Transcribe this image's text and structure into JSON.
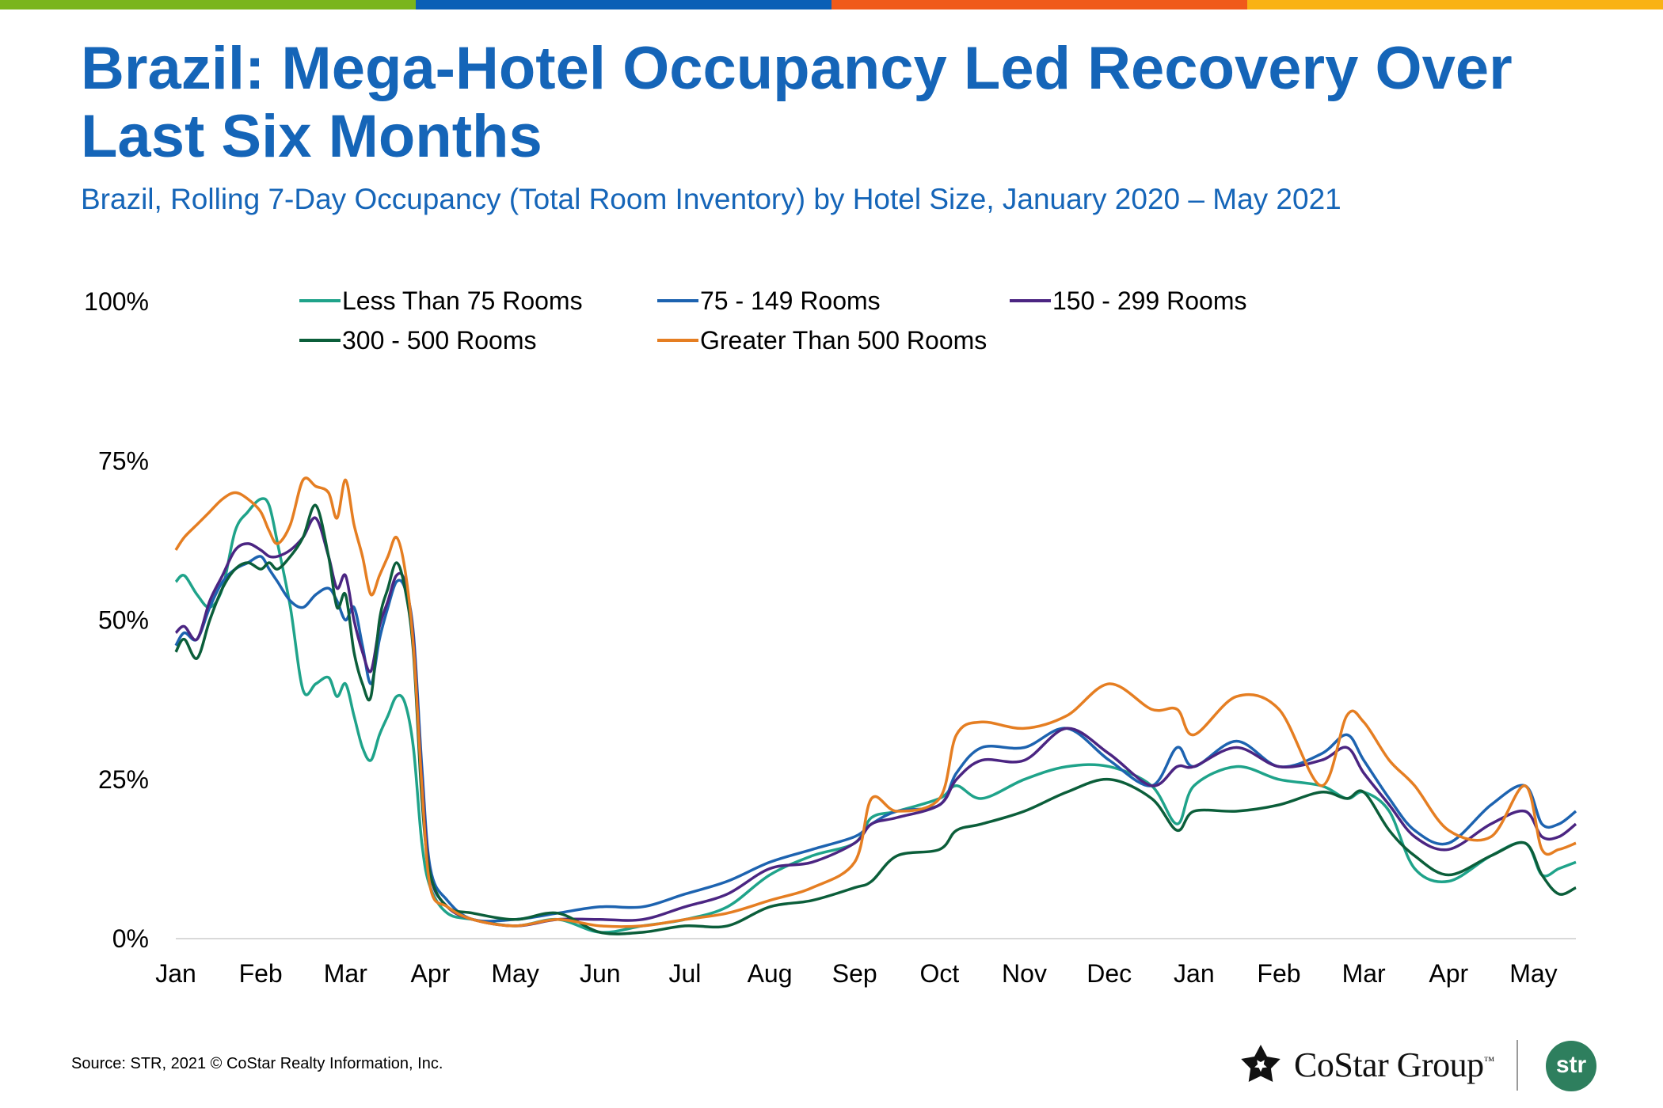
{
  "header": {
    "title": "Brazil: Mega-Hotel Occupancy Led Recovery Over Last Six Months",
    "subtitle": "Brazil, Rolling 7-Day Occupancy (Total Room Inventory) by Hotel Size, January 2020 – May 2021"
  },
  "colors": {
    "bar": [
      "#7ab51d",
      "#0b5fb6",
      "#f05a1a",
      "#f9b214"
    ],
    "title": "#1565b8"
  },
  "footer": {
    "source": "Source: STR, 2021 © CoStar Realty Information, Inc.",
    "logo_text": "CoStar Group",
    "logo_tm": "™",
    "badge_text": "str"
  },
  "chart_data": {
    "type": "line",
    "title": "Brazil, Rolling 7-Day Occupancy (Total Room Inventory) by Hotel Size, January 2020 – May 2021",
    "xlabel": "",
    "ylabel": "",
    "ylim": [
      0,
      100
    ],
    "xlim": [
      0,
      16.5
    ],
    "grid": false,
    "legend_position": "top",
    "y_ticks": [
      0,
      25,
      50,
      75,
      100
    ],
    "y_tick_labels": [
      "0%",
      "25%",
      "50%",
      "75%",
      "100%"
    ],
    "x_ticks": [
      0,
      1,
      2,
      3,
      4,
      5,
      6,
      7,
      8,
      9,
      10,
      11,
      12,
      13,
      14,
      15,
      16
    ],
    "x_tick_labels": [
      "Jan",
      "Feb",
      "Mar",
      "Apr",
      "May",
      "Jun",
      "Jul",
      "Aug",
      "Sep",
      "Oct",
      "Nov",
      "Dec",
      "Jan",
      "Feb",
      "Mar",
      "Apr",
      "May"
    ],
    "series": [
      {
        "name": "Less Than 75 Rooms",
        "color": "#1fa38a",
        "x": [
          0,
          0.1,
          0.25,
          0.4,
          0.55,
          0.7,
          0.85,
          1.0,
          1.1,
          1.2,
          1.35,
          1.5,
          1.65,
          1.8,
          1.9,
          2.0,
          2.1,
          2.2,
          2.3,
          2.4,
          2.5,
          2.6,
          2.7,
          2.8,
          2.9,
          3.0,
          3.2,
          3.5,
          4.0,
          4.5,
          5.0,
          5.5,
          6.0,
          6.5,
          7.0,
          7.5,
          8.0,
          8.2,
          8.5,
          9.0,
          9.2,
          9.5,
          10.0,
          10.5,
          11.0,
          11.5,
          11.8,
          12.0,
          12.5,
          13.0,
          13.5,
          13.8,
          14.0,
          14.3,
          14.6,
          15.0,
          15.5,
          15.9,
          16.1,
          16.3,
          16.5
        ],
        "y": [
          56,
          57,
          54,
          52,
          55,
          64,
          67,
          69,
          68,
          62,
          52,
          39,
          40,
          41,
          38,
          40,
          35,
          30,
          28,
          32,
          35,
          38,
          37,
          30,
          15,
          8,
          4,
          3,
          2,
          3,
          1,
          2,
          3,
          5,
          10,
          13,
          15,
          19,
          20,
          22,
          24,
          22,
          25,
          27,
          27,
          24,
          18,
          24,
          27,
          25,
          24,
          22,
          23,
          20,
          11,
          9,
          13,
          15,
          10,
          11,
          12
        ]
      },
      {
        "name": "75 - 149 Rooms",
        "color": "#1d63b0",
        "x": [
          0,
          0.1,
          0.25,
          0.4,
          0.55,
          0.7,
          0.85,
          1.0,
          1.1,
          1.2,
          1.35,
          1.5,
          1.65,
          1.8,
          1.9,
          2.0,
          2.1,
          2.2,
          2.3,
          2.4,
          2.5,
          2.6,
          2.7,
          2.8,
          2.9,
          3.0,
          3.2,
          3.5,
          4.0,
          4.5,
          5.0,
          5.5,
          6.0,
          6.5,
          7.0,
          7.5,
          8.0,
          8.2,
          8.5,
          9.0,
          9.2,
          9.5,
          10.0,
          10.5,
          11.0,
          11.5,
          11.8,
          12.0,
          12.5,
          13.0,
          13.5,
          13.8,
          14.0,
          14.3,
          14.6,
          15.0,
          15.5,
          15.9,
          16.1,
          16.3,
          16.5
        ],
        "y": [
          46,
          48,
          47,
          52,
          56,
          58,
          59,
          60,
          58,
          56,
          53,
          52,
          54,
          55,
          53,
          50,
          52,
          46,
          40,
          47,
          52,
          56,
          55,
          48,
          27,
          11,
          6,
          3,
          3,
          4,
          5,
          5,
          7,
          9,
          12,
          14,
          16,
          18,
          20,
          21,
          26,
          30,
          30,
          33,
          28,
          24,
          30,
          27,
          31,
          27,
          29,
          32,
          28,
          22,
          17,
          15,
          21,
          24,
          18,
          18,
          20
        ]
      },
      {
        "name": "150 - 299 Rooms",
        "color": "#4b2582",
        "x": [
          0,
          0.1,
          0.25,
          0.4,
          0.55,
          0.7,
          0.85,
          1.0,
          1.1,
          1.2,
          1.35,
          1.5,
          1.65,
          1.8,
          1.9,
          2.0,
          2.1,
          2.2,
          2.3,
          2.4,
          2.5,
          2.6,
          2.7,
          2.8,
          2.9,
          3.0,
          3.2,
          3.5,
          4.0,
          4.5,
          5.0,
          5.5,
          6.0,
          6.5,
          7.0,
          7.5,
          8.0,
          8.2,
          8.5,
          9.0,
          9.2,
          9.5,
          10.0,
          10.5,
          11.0,
          11.5,
          11.8,
          12.0,
          12.5,
          13.0,
          13.5,
          13.8,
          14.0,
          14.3,
          14.6,
          15.0,
          15.5,
          15.9,
          16.1,
          16.3,
          16.5
        ],
        "y": [
          48,
          49,
          47,
          53,
          57,
          61,
          62,
          61,
          60,
          60,
          61,
          63,
          66,
          60,
          55,
          57,
          50,
          45,
          42,
          49,
          53,
          57,
          56,
          47,
          25,
          10,
          5,
          3,
          2,
          3,
          3,
          3,
          5,
          7,
          11,
          12,
          15,
          18,
          19,
          21,
          25,
          28,
          28,
          33,
          29,
          24,
          27,
          27,
          30,
          27,
          28,
          30,
          26,
          21,
          16,
          14,
          18,
          20,
          16,
          16,
          18
        ]
      },
      {
        "name": "300 - 500 Rooms",
        "color": "#0b5e3a",
        "x": [
          0,
          0.1,
          0.25,
          0.4,
          0.55,
          0.7,
          0.85,
          1.0,
          1.1,
          1.2,
          1.35,
          1.5,
          1.65,
          1.8,
          1.9,
          2.0,
          2.1,
          2.2,
          2.3,
          2.4,
          2.5,
          2.6,
          2.7,
          2.8,
          2.9,
          3.0,
          3.2,
          3.5,
          4.0,
          4.5,
          5.0,
          5.5,
          6.0,
          6.5,
          7.0,
          7.5,
          8.0,
          8.2,
          8.5,
          9.0,
          9.2,
          9.5,
          10.0,
          10.5,
          11.0,
          11.5,
          11.8,
          12.0,
          12.5,
          13.0,
          13.5,
          13.8,
          14.0,
          14.3,
          14.6,
          15.0,
          15.5,
          15.9,
          16.1,
          16.3,
          16.5
        ],
        "y": [
          45,
          47,
          44,
          50,
          55,
          58,
          59,
          58,
          59,
          58,
          60,
          63,
          68,
          60,
          52,
          54,
          45,
          40,
          38,
          50,
          55,
          59,
          55,
          45,
          22,
          10,
          5,
          4,
          3,
          4,
          1,
          1,
          2,
          2,
          5,
          6,
          8,
          9,
          13,
          14,
          17,
          18,
          20,
          23,
          25,
          22,
          17,
          20,
          20,
          21,
          23,
          22,
          23,
          17,
          13,
          10,
          13,
          15,
          10,
          7,
          8
        ]
      },
      {
        "name": "Greater Than 500 Rooms",
        "color": "#e57e22",
        "x": [
          0,
          0.1,
          0.25,
          0.4,
          0.55,
          0.7,
          0.85,
          1.0,
          1.1,
          1.2,
          1.35,
          1.5,
          1.65,
          1.8,
          1.9,
          2.0,
          2.1,
          2.2,
          2.3,
          2.4,
          2.5,
          2.6,
          2.7,
          2.8,
          2.9,
          3.0,
          3.2,
          3.5,
          4.0,
          4.5,
          5.0,
          5.5,
          6.0,
          6.5,
          7.0,
          7.5,
          8.0,
          8.2,
          8.5,
          9.0,
          9.2,
          9.5,
          10.0,
          10.5,
          11.0,
          11.5,
          11.8,
          12.0,
          12.5,
          13.0,
          13.5,
          13.8,
          14.0,
          14.3,
          14.6,
          15.0,
          15.5,
          15.9,
          16.1,
          16.3,
          16.5
        ],
        "y": [
          61,
          63,
          65,
          67,
          69,
          70,
          69,
          67,
          64,
          62,
          65,
          72,
          71,
          70,
          66,
          72,
          65,
          60,
          54,
          57,
          60,
          63,
          58,
          46,
          24,
          8,
          5,
          3,
          2,
          3,
          2,
          2,
          3,
          4,
          6,
          8,
          12,
          22,
          20,
          22,
          32,
          34,
          33,
          35,
          40,
          36,
          36,
          32,
          38,
          36,
          24,
          35,
          34,
          28,
          24,
          17,
          16,
          24,
          14,
          14,
          15
        ]
      }
    ]
  }
}
